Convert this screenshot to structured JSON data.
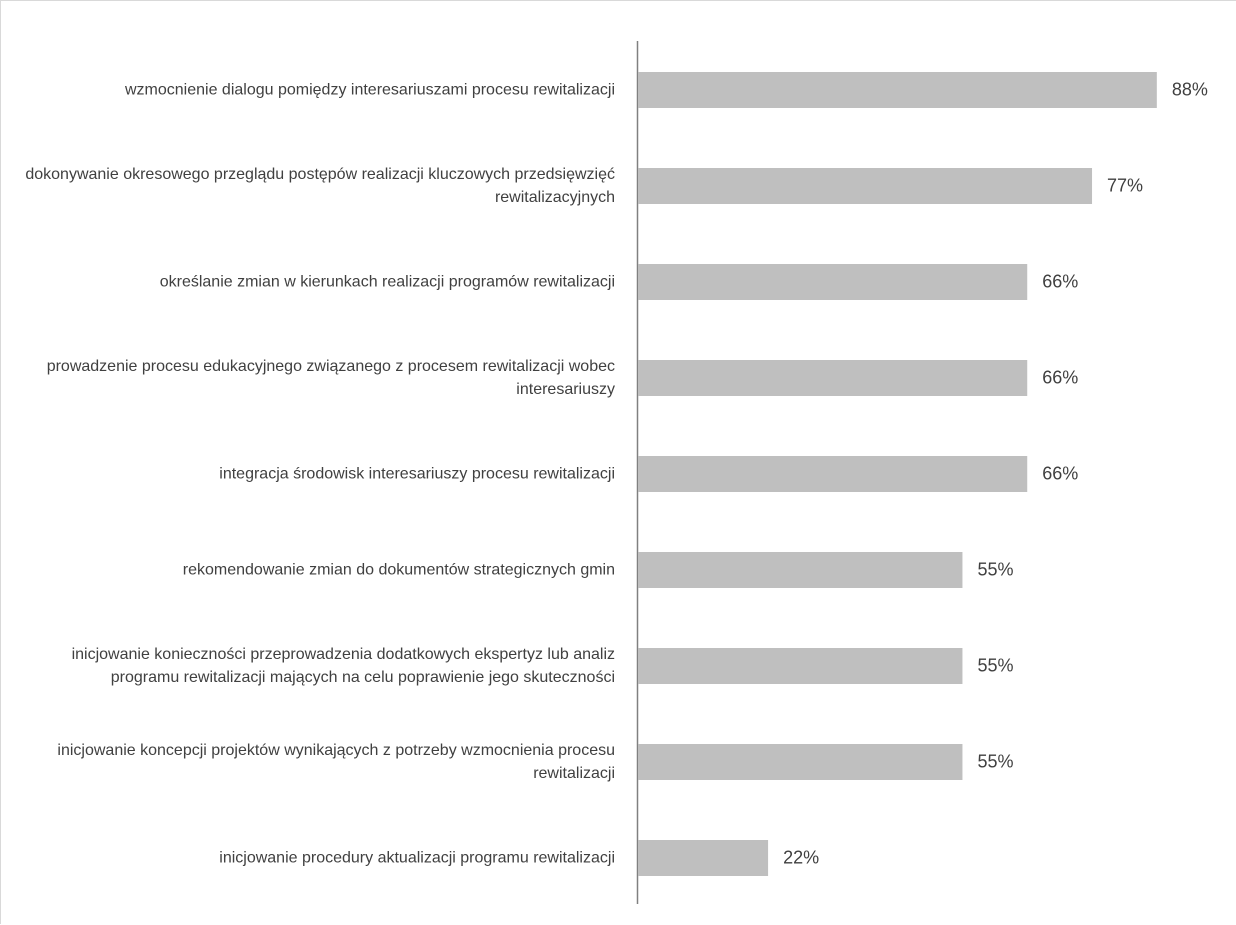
{
  "chart_data": {
    "type": "bar",
    "orientation": "horizontal",
    "categories": [
      "wzmocnienie dialogu pomiędzy interesariuszami procesu rewitalizacji",
      "dokonywanie okresowego przeglądu postępów realizacji kluczowych przedsięwzięć rewitalizacyjnych",
      "określanie zmian w kierunkach realizacji programów rewitalizacji",
      "prowadzenie procesu edukacyjnego związanego z procesem rewitalizacji wobec interesariuszy",
      "integracja środowisk interesariuszy procesu rewitalizacji",
      "rekomendowanie zmian do dokumentów strategicznych gmin",
      "inicjowanie konieczności przeprowadzenia dodatkowych ekspertyz lub analiz programu rewitalizacji mających na celu poprawienie jego skuteczności",
      "inicjowanie koncepcji projektów wynikających z potrzeby wzmocnienia procesu rewitalizacji",
      "inicjowanie procedury aktualizacji programu rewitalizacji"
    ],
    "values": [
      88,
      77,
      66,
      66,
      66,
      55,
      55,
      55,
      22
    ],
    "value_labels": [
      "88%",
      "77%",
      "66%",
      "66%",
      "66%",
      "55%",
      "55%",
      "55%",
      "22%"
    ],
    "color": "#bfbfbf"
  }
}
